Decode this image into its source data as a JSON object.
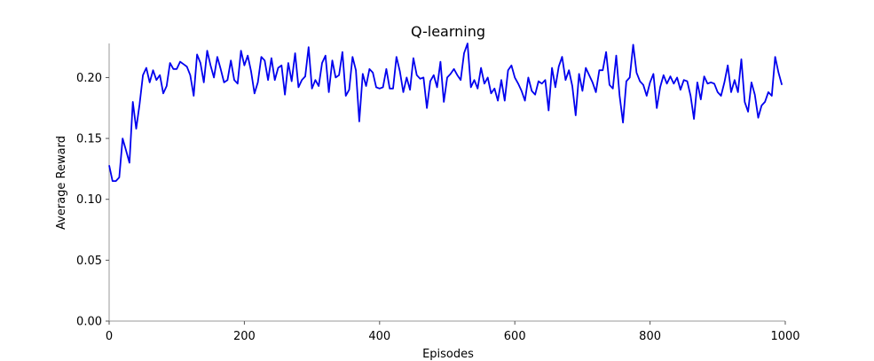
{
  "chart_data": {
    "type": "line",
    "title": "Q-learning",
    "xlabel": "Episodes",
    "ylabel": "Average Reward",
    "xlim": [
      0,
      1000
    ],
    "ylim": [
      0,
      0.228
    ],
    "xticks": [
      0,
      200,
      400,
      600,
      800,
      1000
    ],
    "yticks": [
      0.0,
      0.05,
      0.1,
      0.15,
      0.2
    ],
    "ytick_labels": [
      "0.00",
      "0.05",
      "0.10",
      "0.15",
      "0.20"
    ],
    "xtick_labels": [
      "0",
      "200",
      "400",
      "600",
      "800",
      "1000"
    ],
    "grid": false,
    "series": [
      {
        "color": "#0000ee",
        "x": [
          0,
          5,
          10,
          15,
          20,
          25,
          30,
          35,
          40,
          45,
          50,
          55,
          60,
          65,
          70,
          75,
          80,
          85,
          90,
          95,
          100,
          105,
          110,
          115,
          120,
          125,
          130,
          135,
          140,
          145,
          150,
          155,
          160,
          165,
          170,
          175,
          180,
          185,
          190,
          195,
          200,
          205,
          210,
          215,
          220,
          225,
          230,
          235,
          240,
          245,
          250,
          255,
          260,
          265,
          270,
          275,
          280,
          285,
          290,
          295,
          300,
          305,
          310,
          315,
          320,
          325,
          330,
          335,
          340,
          345,
          350,
          355,
          360,
          365,
          370,
          375,
          380,
          385,
          390,
          395,
          400,
          405,
          410,
          415,
          420,
          425,
          430,
          435,
          440,
          445,
          450,
          455,
          460,
          465,
          470,
          475,
          480,
          485,
          490,
          495,
          500,
          505,
          510,
          515,
          520,
          525,
          530,
          535,
          540,
          545,
          550,
          555,
          560,
          565,
          570,
          575,
          580,
          585,
          590,
          595,
          600,
          605,
          610,
          615,
          620,
          625,
          630,
          635,
          640,
          645,
          650,
          655,
          660,
          665,
          670,
          675,
          680,
          685,
          690,
          695,
          700,
          705,
          710,
          715,
          720,
          725,
          730,
          735,
          740,
          745,
          750,
          755,
          760,
          765,
          770,
          775,
          780,
          785,
          790,
          795,
          800,
          805,
          810,
          815,
          820,
          825,
          830,
          835,
          840,
          845,
          850,
          855,
          860,
          865,
          870,
          875,
          880,
          885,
          890,
          895,
          900,
          905,
          910,
          915,
          920,
          925,
          930,
          935,
          940,
          945,
          950,
          955,
          960,
          965,
          970,
          975,
          980,
          985,
          990,
          995
        ],
        "values": [
          0.128,
          0.115,
          0.115,
          0.118,
          0.15,
          0.14,
          0.13,
          0.18,
          0.158,
          0.178,
          0.202,
          0.208,
          0.196,
          0.206,
          0.198,
          0.202,
          0.187,
          0.193,
          0.212,
          0.207,
          0.207,
          0.213,
          0.211,
          0.209,
          0.202,
          0.185,
          0.219,
          0.212,
          0.196,
          0.222,
          0.21,
          0.2,
          0.217,
          0.207,
          0.196,
          0.198,
          0.214,
          0.198,
          0.195,
          0.222,
          0.21,
          0.218,
          0.205,
          0.187,
          0.196,
          0.217,
          0.214,
          0.198,
          0.216,
          0.198,
          0.208,
          0.21,
          0.186,
          0.212,
          0.197,
          0.22,
          0.192,
          0.198,
          0.201,
          0.225,
          0.191,
          0.198,
          0.193,
          0.212,
          0.218,
          0.188,
          0.214,
          0.2,
          0.202,
          0.221,
          0.185,
          0.19,
          0.217,
          0.206,
          0.164,
          0.203,
          0.193,
          0.207,
          0.204,
          0.192,
          0.191,
          0.192,
          0.207,
          0.191,
          0.191,
          0.217,
          0.205,
          0.188,
          0.2,
          0.19,
          0.216,
          0.202,
          0.199,
          0.2,
          0.175,
          0.197,
          0.202,
          0.192,
          0.213,
          0.18,
          0.2,
          0.203,
          0.207,
          0.202,
          0.198,
          0.22,
          0.228,
          0.192,
          0.198,
          0.191,
          0.208,
          0.195,
          0.2,
          0.187,
          0.191,
          0.181,
          0.198,
          0.181,
          0.206,
          0.21,
          0.2,
          0.195,
          0.189,
          0.181,
          0.2,
          0.189,
          0.186,
          0.197,
          0.195,
          0.198,
          0.173,
          0.208,
          0.192,
          0.209,
          0.217,
          0.198,
          0.206,
          0.193,
          0.169,
          0.203,
          0.189,
          0.208,
          0.202,
          0.196,
          0.188,
          0.206,
          0.206,
          0.221,
          0.194,
          0.191,
          0.218,
          0.185,
          0.163,
          0.197,
          0.2,
          0.227,
          0.204,
          0.197,
          0.194,
          0.185,
          0.196,
          0.203,
          0.175,
          0.192,
          0.202,
          0.195,
          0.201,
          0.195,
          0.2,
          0.19,
          0.198,
          0.197,
          0.185,
          0.166,
          0.196,
          0.182,
          0.201,
          0.195,
          0.196,
          0.195,
          0.188,
          0.185,
          0.196,
          0.21,
          0.188,
          0.198,
          0.188,
          0.215,
          0.18,
          0.172,
          0.196,
          0.186,
          0.167,
          0.177,
          0.18,
          0.188,
          0.185,
          0.217,
          0.204,
          0.194
        ]
      }
    ]
  }
}
